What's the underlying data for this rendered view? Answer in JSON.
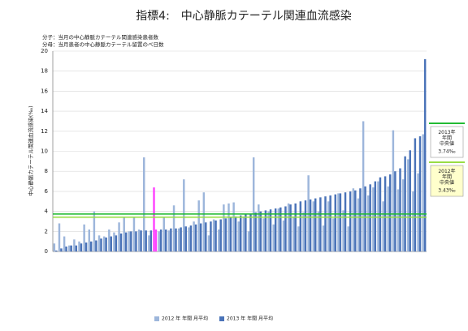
{
  "chart_data": {
    "type": "bar",
    "title": "指標4:　中心静脈カテーテル関連血流感染",
    "notes": [
      "分子：当月の中心静脈カテーテル関連感染患者数",
      "分母：当月患者の中心静脈カテーテル留置のべ日数"
    ],
    "y_label": "中心静脈カテーテル関連血流感染(‰)",
    "categories": [
      null,
      null,
      null,
      null,
      null,
      null,
      null,
      null,
      null,
      null,
      null,
      null,
      null,
      null,
      null,
      null,
      null,
      null,
      null,
      null,
      null,
      null,
      null,
      null,
      null,
      null,
      null,
      null,
      null,
      null,
      null,
      null,
      null,
      null,
      null,
      null,
      null,
      null,
      null,
      null,
      null,
      null,
      null,
      null,
      null,
      null,
      null,
      null,
      null,
      null,
      null,
      null,
      null,
      null,
      null,
      null,
      null,
      null,
      null,
      null,
      null,
      null,
      null,
      null,
      null,
      null,
      null,
      null,
      null,
      null,
      null,
      null,
      null,
      null,
      null
    ],
    "series": [
      {
        "name": "2012 年 年間 月平均",
        "color": "#9db6db",
        "values": [
          0.8,
          2.8,
          1.5,
          0.6,
          1.2,
          1.0,
          2.7,
          2.2,
          4.0,
          1.6,
          1.5,
          2.2,
          1.9,
          2.9,
          3.4,
          2.0,
          3.4,
          2.2,
          9.4,
          1.6,
          6.4,
          2.0,
          3.4,
          2.1,
          4.6,
          2.3,
          7.2,
          2.4,
          3.0,
          5.1,
          5.9,
          1.6,
          3.2,
          2.2,
          4.7,
          4.8,
          4.9,
          3.0,
          3.5,
          2.0,
          9.4,
          4.7,
          3.3,
          4.0,
          2.7,
          4.3,
          3.1,
          4.8,
          3.5,
          2.5,
          3.9,
          7.6,
          5.0,
          4.0,
          2.6,
          5.0,
          3.3,
          5.8,
          4.1,
          2.5,
          6.3,
          5.3,
          13.0,
          5.6,
          6.4,
          7.0,
          5.0,
          6.5,
          12.1,
          6.2,
          7.2,
          9.2,
          6.0,
          7.8,
          11.7
        ]
      },
      {
        "name": "2013 年 年間 月平均",
        "color": "#4a73b8",
        "values": [
          0.1,
          0.3,
          0.5,
          0.6,
          0.6,
          0.8,
          0.9,
          1.0,
          1.1,
          1.3,
          1.4,
          1.5,
          1.6,
          1.8,
          1.9,
          2.0,
          2.0,
          2.1,
          2.1,
          2.1,
          2.2,
          2.2,
          2.2,
          2.3,
          2.3,
          2.4,
          2.5,
          2.6,
          2.7,
          2.8,
          2.9,
          3.0,
          3.1,
          3.2,
          3.3,
          3.4,
          3.5,
          3.6,
          3.7,
          3.8,
          3.9,
          4.0,
          4.1,
          4.2,
          4.3,
          4.4,
          4.5,
          4.7,
          4.8,
          5.0,
          5.1,
          5.2,
          5.3,
          5.4,
          5.5,
          5.6,
          5.7,
          5.8,
          5.9,
          6.0,
          6.1,
          6.3,
          6.5,
          6.7,
          7.0,
          7.4,
          7.5,
          7.7,
          8.0,
          8.3,
          9.5,
          10.1,
          11.3,
          11.5,
          19.2
        ]
      }
    ],
    "highlight_index": 20,
    "highlight_color": "#ff44ff",
    "reference_lines": [
      {
        "name": "2013年 年間 中央値",
        "value": 3.74,
        "value_label": "3.74‰",
        "color": "#22bb33",
        "box_color": "#ffffff"
      },
      {
        "name": "2012年 年間 中央値",
        "value": 3.43,
        "value_label": "3.43‰",
        "color": "#99dd44",
        "box_color": "#ffffcc"
      }
    ],
    "ylim": [
      0,
      20
    ],
    "yticks": [
      0,
      2,
      4,
      6,
      8,
      10,
      12,
      14,
      16,
      18,
      20
    ],
    "grid": true
  }
}
